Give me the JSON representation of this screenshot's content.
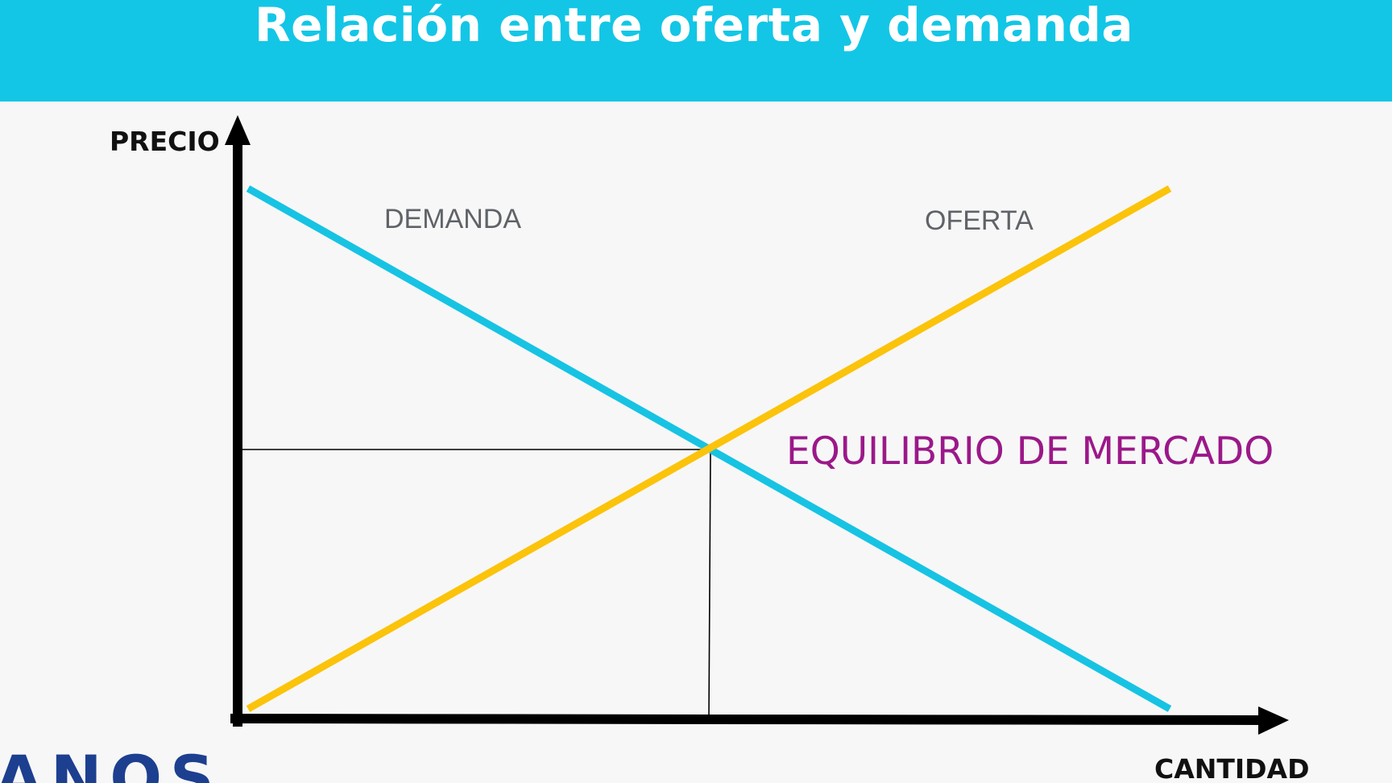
{
  "slide": {
    "title": "Relación entre oferta y demanda"
  },
  "diagram": {
    "y_axis_label": "PRECIO",
    "x_axis_label": "CANTIDAD",
    "demand_label": "DEMANDA",
    "supply_label": "OFERTA",
    "equilibrium_label": "EQUILIBRIO DE MERCADO",
    "colors": {
      "header_band": "#13c6e6",
      "demand_curve": "#17c3e3",
      "supply_curve": "#fbc30a",
      "equilibrium_text": "#9b1889",
      "axes": "#000000"
    }
  },
  "footer": {
    "logo_fragment": "ANOS"
  }
}
